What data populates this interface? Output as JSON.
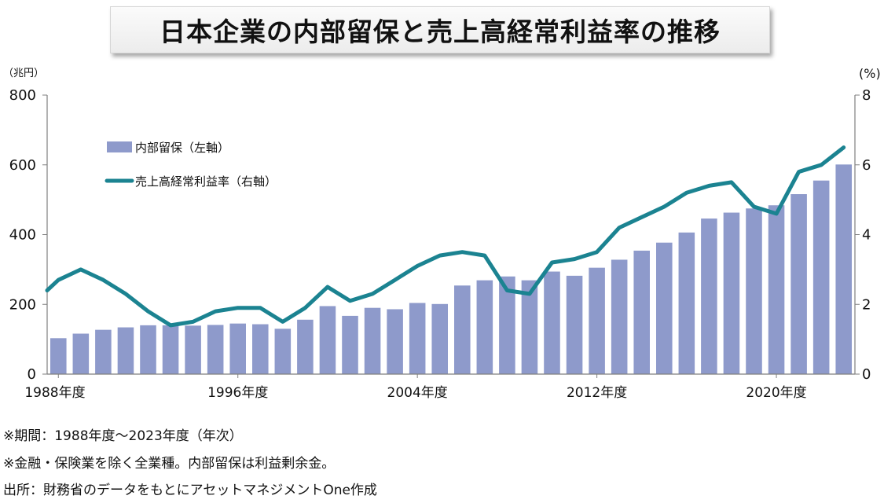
{
  "title": "日本企業の内部留保と売上高経常利益率の推移",
  "chart_data": {
    "type": "bar+line",
    "title": "日本企業の内部留保と売上高経常利益率の推移",
    "left_unit": "（兆円）",
    "right_unit": "(%)",
    "left_ylim": [
      0,
      800
    ],
    "right_ylim": [
      0,
      8
    ],
    "left_ticks": [
      "0",
      "200",
      "400",
      "600",
      "800"
    ],
    "right_ticks": [
      "0",
      "2",
      "4",
      "6",
      "8"
    ],
    "x_tick_labels": [
      "1988年度",
      "1996年度",
      "2004年度",
      "2012年度",
      "2020年度"
    ],
    "x": [
      1988,
      1989,
      1990,
      1991,
      1992,
      1993,
      1994,
      1995,
      1996,
      1997,
      1998,
      1999,
      2000,
      2001,
      2002,
      2003,
      2004,
      2005,
      2006,
      2007,
      2008,
      2009,
      2010,
      2011,
      2012,
      2013,
      2014,
      2015,
      2016,
      2017,
      2018,
      2019,
      2020,
      2021,
      2022,
      2023
    ],
    "series": [
      {
        "name": "内部留保（左軸）",
        "axis": "left",
        "type": "bar",
        "color": "#8e9acb",
        "values": [
          103,
          116,
          127,
          134,
          140,
          140,
          139,
          141,
          145,
          143,
          130,
          156,
          195,
          167,
          190,
          186,
          204,
          201,
          254,
          269,
          280,
          269,
          294,
          282,
          305,
          328,
          354,
          377,
          406,
          446,
          463,
          475,
          484,
          516,
          555,
          601
        ]
      },
      {
        "name": "売上高経常利益率（右軸）",
        "axis": "right",
        "type": "line",
        "color": "#1b8391",
        "values": [
          2.7,
          3.0,
          2.7,
          2.3,
          1.8,
          1.4,
          1.5,
          1.8,
          1.9,
          1.9,
          1.5,
          1.9,
          2.5,
          2.1,
          2.3,
          2.7,
          3.1,
          3.4,
          3.5,
          3.4,
          2.4,
          2.3,
          3.2,
          3.3,
          3.5,
          4.2,
          4.5,
          4.8,
          5.2,
          5.4,
          5.5,
          4.8,
          4.6,
          5.8,
          6.0,
          6.5
        ]
      }
    ],
    "legend": [
      "内部留保（左軸）",
      "売上高経常利益率（右軸）"
    ],
    "legend_position": "top-left"
  },
  "notes": [
    "※期間：1988年度～2023年度（年次）",
    "※金融・保険業を除く全業種。内部留保は利益剰余金。",
    "出所：財務省のデータをもとにアセットマネジメントOne作成"
  ]
}
